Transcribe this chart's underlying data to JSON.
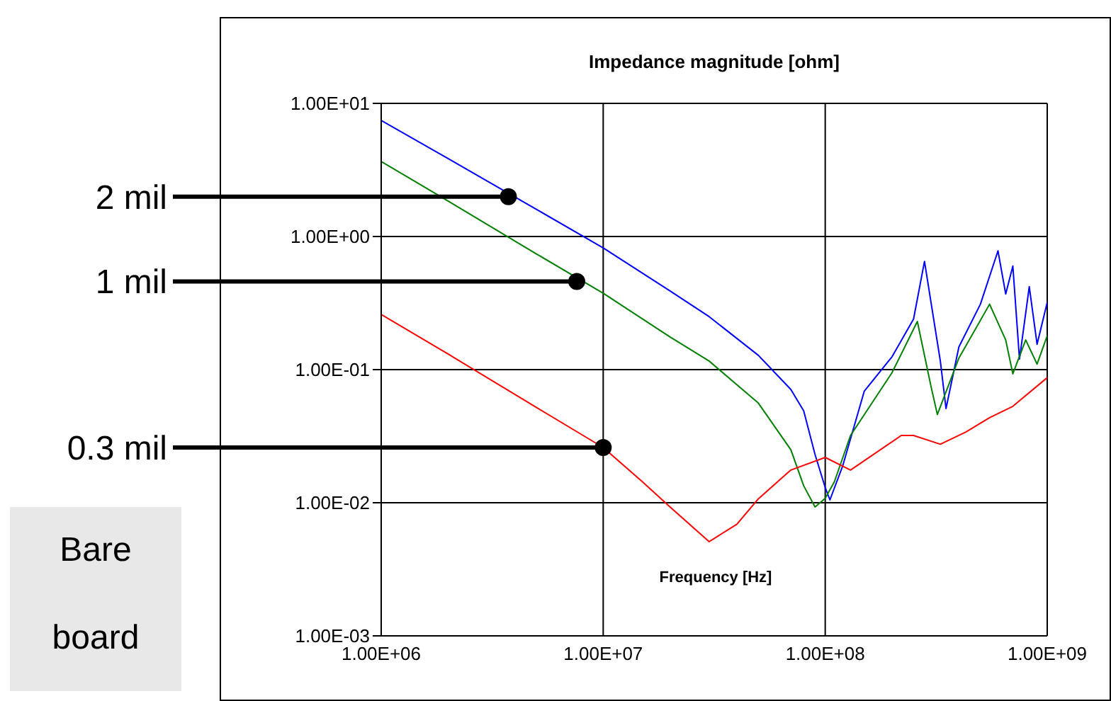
{
  "chart_data": {
    "type": "line",
    "title": "Impedance magnitude [ohm]",
    "xlabel": "Frequency [Hz]",
    "log": "xy",
    "grid": true,
    "legend": false,
    "marker": "none",
    "line_style": "solid",
    "xlim": [
      1000000,
      1000000000
    ],
    "ylim": [
      0.001,
      10
    ],
    "xticks": [
      {
        "value": 1000000,
        "label": "1.00E+06"
      },
      {
        "value": 10000000,
        "label": "1.00E+07"
      },
      {
        "value": 100000000,
        "label": "1.00E+08"
      },
      {
        "value": 1000000000,
        "label": "1.00E+09"
      }
    ],
    "yticks": [
      {
        "value": 0.001,
        "label": "1.00E-03"
      },
      {
        "value": 0.01,
        "label": "1.00E-02"
      },
      {
        "value": 0.1,
        "label": "1.00E-01"
      },
      {
        "value": 1,
        "label": "1.00E+00"
      },
      {
        "value": 10,
        "label": "1.00E+01"
      }
    ],
    "series": [
      {
        "color": "#0000ff",
        "x": [
          1000000,
          2000000,
          5000000,
          10000000,
          20000000,
          30000000,
          50000000,
          70000000,
          80000000,
          90000000,
          100000000,
          105000000,
          120000000,
          150000000,
          200000000,
          250000000,
          280000000,
          330000000,
          350000000,
          400000000,
          500000000,
          600000000,
          650000000,
          700000000,
          750000000,
          830000000,
          900000000,
          1000000000
        ],
        "values": [
          7.45,
          3.85,
          1.6,
          0.82,
          0.39,
          0.25,
          0.128,
          0.071,
          0.049,
          0.023,
          0.013,
          0.0105,
          0.019,
          0.069,
          0.125,
          0.24,
          0.65,
          0.116,
          0.051,
          0.148,
          0.31,
          0.78,
          0.37,
          0.6,
          0.12,
          0.42,
          0.155,
          0.32
        ]
      },
      {
        "color": "#008000",
        "x": [
          1000000,
          2000000,
          5000000,
          10000000,
          20000000,
          30000000,
          50000000,
          70000000,
          80000000,
          90000000,
          100000000,
          110000000,
          130000000,
          200000000,
          260000000,
          300000000,
          320000000,
          400000000,
          550000000,
          650000000,
          700000000,
          800000000,
          900000000,
          1000000000
        ],
        "values": [
          3.66,
          1.85,
          0.74,
          0.375,
          0.176,
          0.116,
          0.056,
          0.025,
          0.0134,
          0.0093,
          0.0108,
          0.0144,
          0.032,
          0.095,
          0.23,
          0.074,
          0.046,
          0.122,
          0.31,
          0.167,
          0.093,
          0.167,
          0.11,
          0.18
        ]
      },
      {
        "color": "#ff0000",
        "x": [
          1000000,
          2000000,
          5000000,
          10000000,
          15000000,
          20000000,
          30000000,
          40000000,
          50000000,
          70000000,
          100000000,
          130000000,
          220000000,
          250000000,
          330000000,
          430000000,
          550000000,
          700000000,
          1000000000
        ],
        "values": [
          0.26,
          0.131,
          0.052,
          0.026,
          0.0144,
          0.0093,
          0.0051,
          0.0069,
          0.0107,
          0.0176,
          0.0219,
          0.0176,
          0.032,
          0.032,
          0.0275,
          0.034,
          0.0435,
          0.053,
          0.087
        ]
      }
    ],
    "annotations": [
      {
        "text": "2 mil",
        "x": 3740000,
        "y": 1.99
      },
      {
        "text": "1 mil",
        "x": 7600000,
        "y": 0.46
      },
      {
        "text": "0.3 mil",
        "x": 10000000,
        "y": 0.026
      },
      "Bare board"
    ]
  }
}
